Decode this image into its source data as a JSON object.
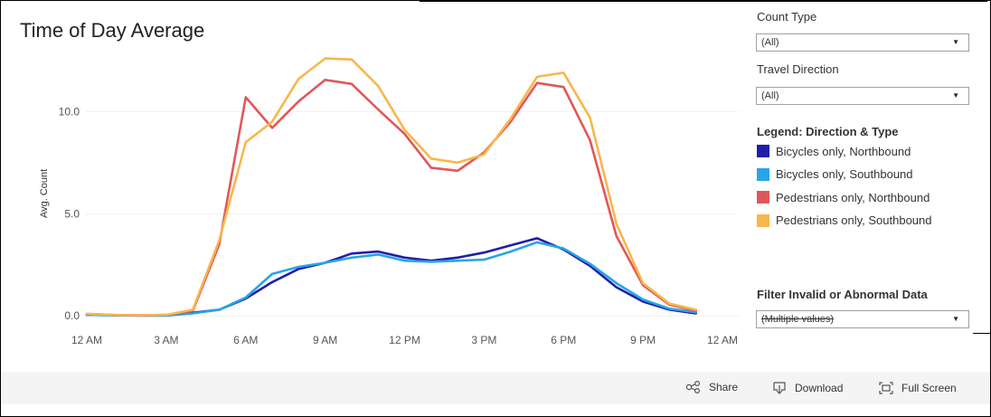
{
  "title": "Time of Day Average",
  "controls": {
    "count_type_label": "Count Type",
    "count_type_value": "(All)",
    "travel_direction_label": "Travel Direction",
    "travel_direction_value": "(All)",
    "legend_title": "Legend: Direction & Type",
    "filter_label": "Filter Invalid or Abnormal Data",
    "filter_value": "(Multiple values)"
  },
  "footer": {
    "share_label": "Share",
    "download_label": "Download",
    "fullscreen_label": "Full Screen",
    "share_icon": "share-icon",
    "download_icon": "download-icon",
    "fullscreen_icon": "fullscreen-icon"
  },
  "chart_data": {
    "type": "line",
    "title": "Time of Day Average",
    "xlabel": "",
    "ylabel": "Avg. Count",
    "x": [
      0,
      1,
      2,
      3,
      4,
      5,
      6,
      7,
      8,
      9,
      10,
      11,
      12,
      13,
      14,
      15,
      16,
      17,
      18,
      19,
      20,
      21,
      22,
      23
    ],
    "xticks": [
      0,
      3,
      6,
      9,
      12,
      15,
      18,
      21,
      24
    ],
    "xtick_labels": [
      "12 AM",
      "3 AM",
      "6 AM",
      "9 AM",
      "12 PM",
      "3 PM",
      "6 PM",
      "9 PM",
      "12 AM"
    ],
    "yticks": [
      0,
      5,
      10
    ],
    "ytick_labels": [
      "0.0",
      "5.0",
      "10.0"
    ],
    "ylim": [
      -0.3,
      13.2
    ],
    "xlim": [
      0,
      24
    ],
    "grid": "horizontal dotted",
    "legend_position": "right",
    "series": [
      {
        "name": "Bicycles only, Northbound",
        "color": "#1f1fa8",
        "values": [
          0.05,
          0.03,
          0.02,
          0.02,
          0.15,
          0.3,
          0.85,
          1.65,
          2.3,
          2.6,
          3.05,
          3.15,
          2.85,
          2.7,
          2.85,
          3.1,
          3.45,
          3.8,
          3.25,
          2.45,
          1.4,
          0.7,
          0.3,
          0.12
        ]
      },
      {
        "name": "Bicycles only, Southbound",
        "color": "#29a4e8",
        "values": [
          0.05,
          0.03,
          0.02,
          0.02,
          0.12,
          0.3,
          0.9,
          2.05,
          2.4,
          2.6,
          2.85,
          3.0,
          2.7,
          2.65,
          2.7,
          2.75,
          3.15,
          3.6,
          3.3,
          2.55,
          1.6,
          0.8,
          0.35,
          0.18
        ]
      },
      {
        "name": "Pedestrians only, Northbound",
        "color": "#e15759",
        "values": [
          0.1,
          0.05,
          0.03,
          0.05,
          0.25,
          3.5,
          10.7,
          9.2,
          10.5,
          11.55,
          11.35,
          10.1,
          8.9,
          7.25,
          7.1,
          8.0,
          9.5,
          11.4,
          11.2,
          8.6,
          3.9,
          1.5,
          0.55,
          0.25
        ]
      },
      {
        "name": "Pedestrians only, Southbound",
        "color": "#f7b74c",
        "values": [
          0.1,
          0.05,
          0.03,
          0.05,
          0.3,
          3.7,
          8.5,
          9.5,
          11.6,
          12.6,
          12.55,
          11.25,
          9.1,
          7.7,
          7.5,
          7.9,
          9.65,
          11.7,
          11.9,
          9.7,
          4.5,
          1.6,
          0.6,
          0.3
        ]
      }
    ]
  }
}
